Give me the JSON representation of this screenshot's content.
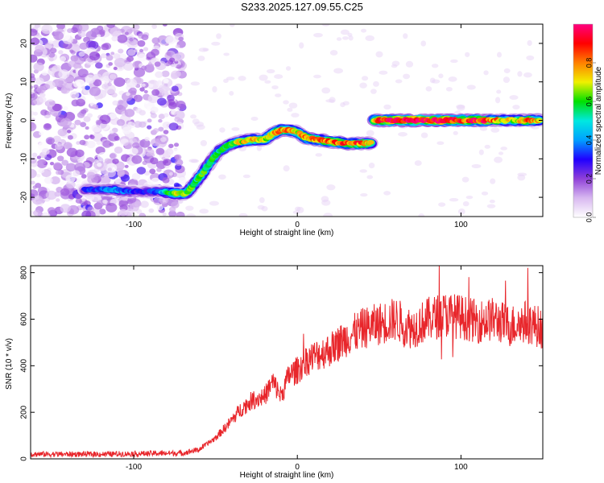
{
  "title": "S233.2025.127.09.55.C25",
  "chart_data": [
    {
      "type": "heatmap",
      "xlabel": "Height of straight line (km)",
      "ylabel": "Frequency (Hz)",
      "xlim": [
        -163,
        150
      ],
      "ylim": [
        -25,
        25
      ],
      "xticks": [
        -100,
        0,
        100
      ],
      "yticks": [
        -20,
        -10,
        0,
        10,
        20
      ],
      "colorbar": {
        "label": "Normalized spectral amplitude",
        "range": [
          0,
          1
        ],
        "ticks": [
          0.0,
          0.2,
          0.4,
          0.6,
          0.8
        ],
        "tick_labels": [
          "0.0",
          "0.2",
          "0.4",
          "0.6",
          "0.8"
        ],
        "colormap": [
          "#ffffff",
          "#d8b8f0",
          "#9040d8",
          "#2000ff",
          "#00a0ff",
          "#00e8e0",
          "#00e000",
          "#f0f000",
          "#ff8000",
          "#ff0000",
          "#ff0080"
        ]
      },
      "ridge": [
        {
          "x": -130,
          "y": -18,
          "a": 0.25
        },
        {
          "x": -120,
          "y": -18,
          "a": 0.3
        },
        {
          "x": -112,
          "y": -18,
          "a": 0.35
        },
        {
          "x": -105,
          "y": -18.5,
          "a": 0.3
        },
        {
          "x": -95,
          "y": -18.5,
          "a": 0.25
        },
        {
          "x": -85,
          "y": -18.5,
          "a": 0.3
        },
        {
          "x": -75,
          "y": -19,
          "a": 0.6
        },
        {
          "x": -68,
          "y": -19,
          "a": 0.55
        },
        {
          "x": -62,
          "y": -16,
          "a": 0.5
        },
        {
          "x": -55,
          "y": -12,
          "a": 0.5
        },
        {
          "x": -48,
          "y": -8,
          "a": 0.45
        },
        {
          "x": -42,
          "y": -6.5,
          "a": 0.5
        },
        {
          "x": -35,
          "y": -5.5,
          "a": 0.6
        },
        {
          "x": -27,
          "y": -5,
          "a": 0.65
        },
        {
          "x": -20,
          "y": -5,
          "a": 0.6
        },
        {
          "x": -15,
          "y": -3.5,
          "a": 0.6
        },
        {
          "x": -10,
          "y": -2.5,
          "a": 0.7
        },
        {
          "x": -5,
          "y": -2.5,
          "a": 0.65
        },
        {
          "x": 0,
          "y": -3,
          "a": 0.6
        },
        {
          "x": 5,
          "y": -4.5,
          "a": 0.7
        },
        {
          "x": 12,
          "y": -5,
          "a": 0.65
        },
        {
          "x": 20,
          "y": -5.5,
          "a": 0.7
        },
        {
          "x": 30,
          "y": -6,
          "a": 0.75
        },
        {
          "x": 40,
          "y": -6,
          "a": 0.7
        },
        {
          "x": 45,
          "y": -6,
          "a": 0.6
        },
        {
          "x": 47,
          "y": 0,
          "a": 0.7
        },
        {
          "x": 55,
          "y": 0,
          "a": 0.8
        },
        {
          "x": 65,
          "y": 0,
          "a": 0.85
        },
        {
          "x": 75,
          "y": 0,
          "a": 0.85
        },
        {
          "x": 85,
          "y": 0,
          "a": 0.85
        },
        {
          "x": 95,
          "y": 0,
          "a": 0.8
        },
        {
          "x": 105,
          "y": 0,
          "a": 0.75
        },
        {
          "x": 115,
          "y": 0,
          "a": 0.8
        },
        {
          "x": 125,
          "y": 0,
          "a": 0.6
        },
        {
          "x": 135,
          "y": 0,
          "a": 0.6
        },
        {
          "x": 142,
          "y": 0,
          "a": 0.7
        },
        {
          "x": 148,
          "y": 0,
          "a": 0.6
        }
      ],
      "noise_region": {
        "x": [
          -163,
          -70
        ],
        "y": [
          -25,
          25
        ],
        "amplitude": 0.2
      }
    },
    {
      "type": "line",
      "xlabel": "Height of straight line (km)",
      "ylabel": "SNR (10 * v/v)",
      "xlim": [
        -163,
        150
      ],
      "ylim": [
        0,
        830
      ],
      "xticks": [
        -100,
        0,
        100
      ],
      "yticks": [
        0,
        200,
        400,
        600,
        800
      ],
      "series": [
        {
          "color": "#e8262b",
          "trend": [
            {
              "x": -163,
              "y": 20
            },
            {
              "x": -120,
              "y": 20
            },
            {
              "x": -70,
              "y": 25
            },
            {
              "x": -60,
              "y": 40
            },
            {
              "x": -50,
              "y": 90
            },
            {
              "x": -42,
              "y": 150
            },
            {
              "x": -35,
              "y": 210
            },
            {
              "x": -28,
              "y": 250
            },
            {
              "x": -20,
              "y": 270
            },
            {
              "x": -15,
              "y": 330
            },
            {
              "x": -10,
              "y": 270
            },
            {
              "x": -5,
              "y": 360
            },
            {
              "x": 0,
              "y": 380
            },
            {
              "x": 5,
              "y": 420
            },
            {
              "x": 10,
              "y": 440
            },
            {
              "x": 20,
              "y": 470
            },
            {
              "x": 30,
              "y": 520
            },
            {
              "x": 40,
              "y": 560
            },
            {
              "x": 50,
              "y": 580
            },
            {
              "x": 60,
              "y": 600
            },
            {
              "x": 70,
              "y": 560
            },
            {
              "x": 80,
              "y": 600
            },
            {
              "x": 90,
              "y": 620
            },
            {
              "x": 100,
              "y": 610
            },
            {
              "x": 110,
              "y": 590
            },
            {
              "x": 120,
              "y": 600
            },
            {
              "x": 130,
              "y": 570
            },
            {
              "x": 140,
              "y": 590
            },
            {
              "x": 150,
              "y": 560
            }
          ]
        }
      ]
    }
  ]
}
